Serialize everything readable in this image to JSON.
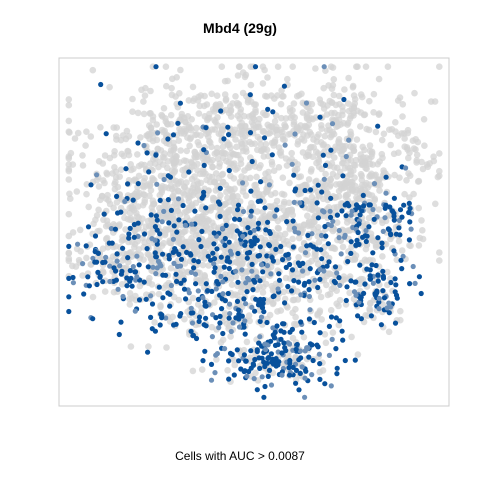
{
  "chart_data": {
    "type": "scatter",
    "title": "Mbd4 (29g)",
    "caption": "Cells with AUC > 0.0087",
    "xlabel": "",
    "ylabel": "",
    "grid": false,
    "axes_visible": false,
    "legend": "none",
    "xlim": [
      -40,
      40
    ],
    "ylim": [
      -40,
      40
    ],
    "point_count_approx": 3400,
    "series": [
      {
        "category": "below-threshold",
        "color": "#d3d3d3"
      },
      {
        "category": "above-threshold",
        "color": "#08519c",
        "color_light": "#6b8fb8"
      }
    ],
    "clusters": [
      {
        "cx": -14,
        "cy": 19,
        "sx": 11,
        "sy": 7,
        "n": 360,
        "highFrac": 0.07
      },
      {
        "cx": 6,
        "cy": 23,
        "sx": 13,
        "sy": 8,
        "n": 420,
        "highFrac": 0.06
      },
      {
        "cx": 22,
        "cy": 15,
        "sx": 6,
        "sy": 8,
        "n": 220,
        "highFrac": 0.05
      },
      {
        "cx": -21,
        "cy": 5,
        "sx": 8,
        "sy": 6,
        "n": 260,
        "highFrac": 0.12
      },
      {
        "cx": -2,
        "cy": 4,
        "sx": 11,
        "sy": 6,
        "n": 360,
        "highFrac": 0.2
      },
      {
        "cx": 14,
        "cy": 5,
        "sx": 6,
        "sy": 4,
        "n": 140,
        "highFrac": 0.15
      },
      {
        "cx": -26,
        "cy": -8,
        "sx": 7,
        "sy": 5,
        "n": 230,
        "highFrac": 0.38
      },
      {
        "cx": -9,
        "cy": -5,
        "sx": 9,
        "sy": 6,
        "n": 330,
        "highFrac": 0.34
      },
      {
        "cx": 9,
        "cy": -7,
        "sx": 9,
        "sy": 5,
        "n": 280,
        "highFrac": 0.3
      },
      {
        "cx": -4,
        "cy": -18,
        "sx": 10,
        "sy": 4,
        "n": 240,
        "highFrac": 0.5
      },
      {
        "cx": 4,
        "cy": -29,
        "sx": 6,
        "sy": 3.5,
        "n": 220,
        "highFrac": 0.7
      },
      {
        "cx": 24,
        "cy": -15,
        "sx": 4,
        "sy": 4,
        "n": 120,
        "highFrac": 0.58
      },
      {
        "cx": 26,
        "cy": 2,
        "sx": 4,
        "sy": 4,
        "n": 120,
        "highFrac": 0.55
      }
    ]
  }
}
